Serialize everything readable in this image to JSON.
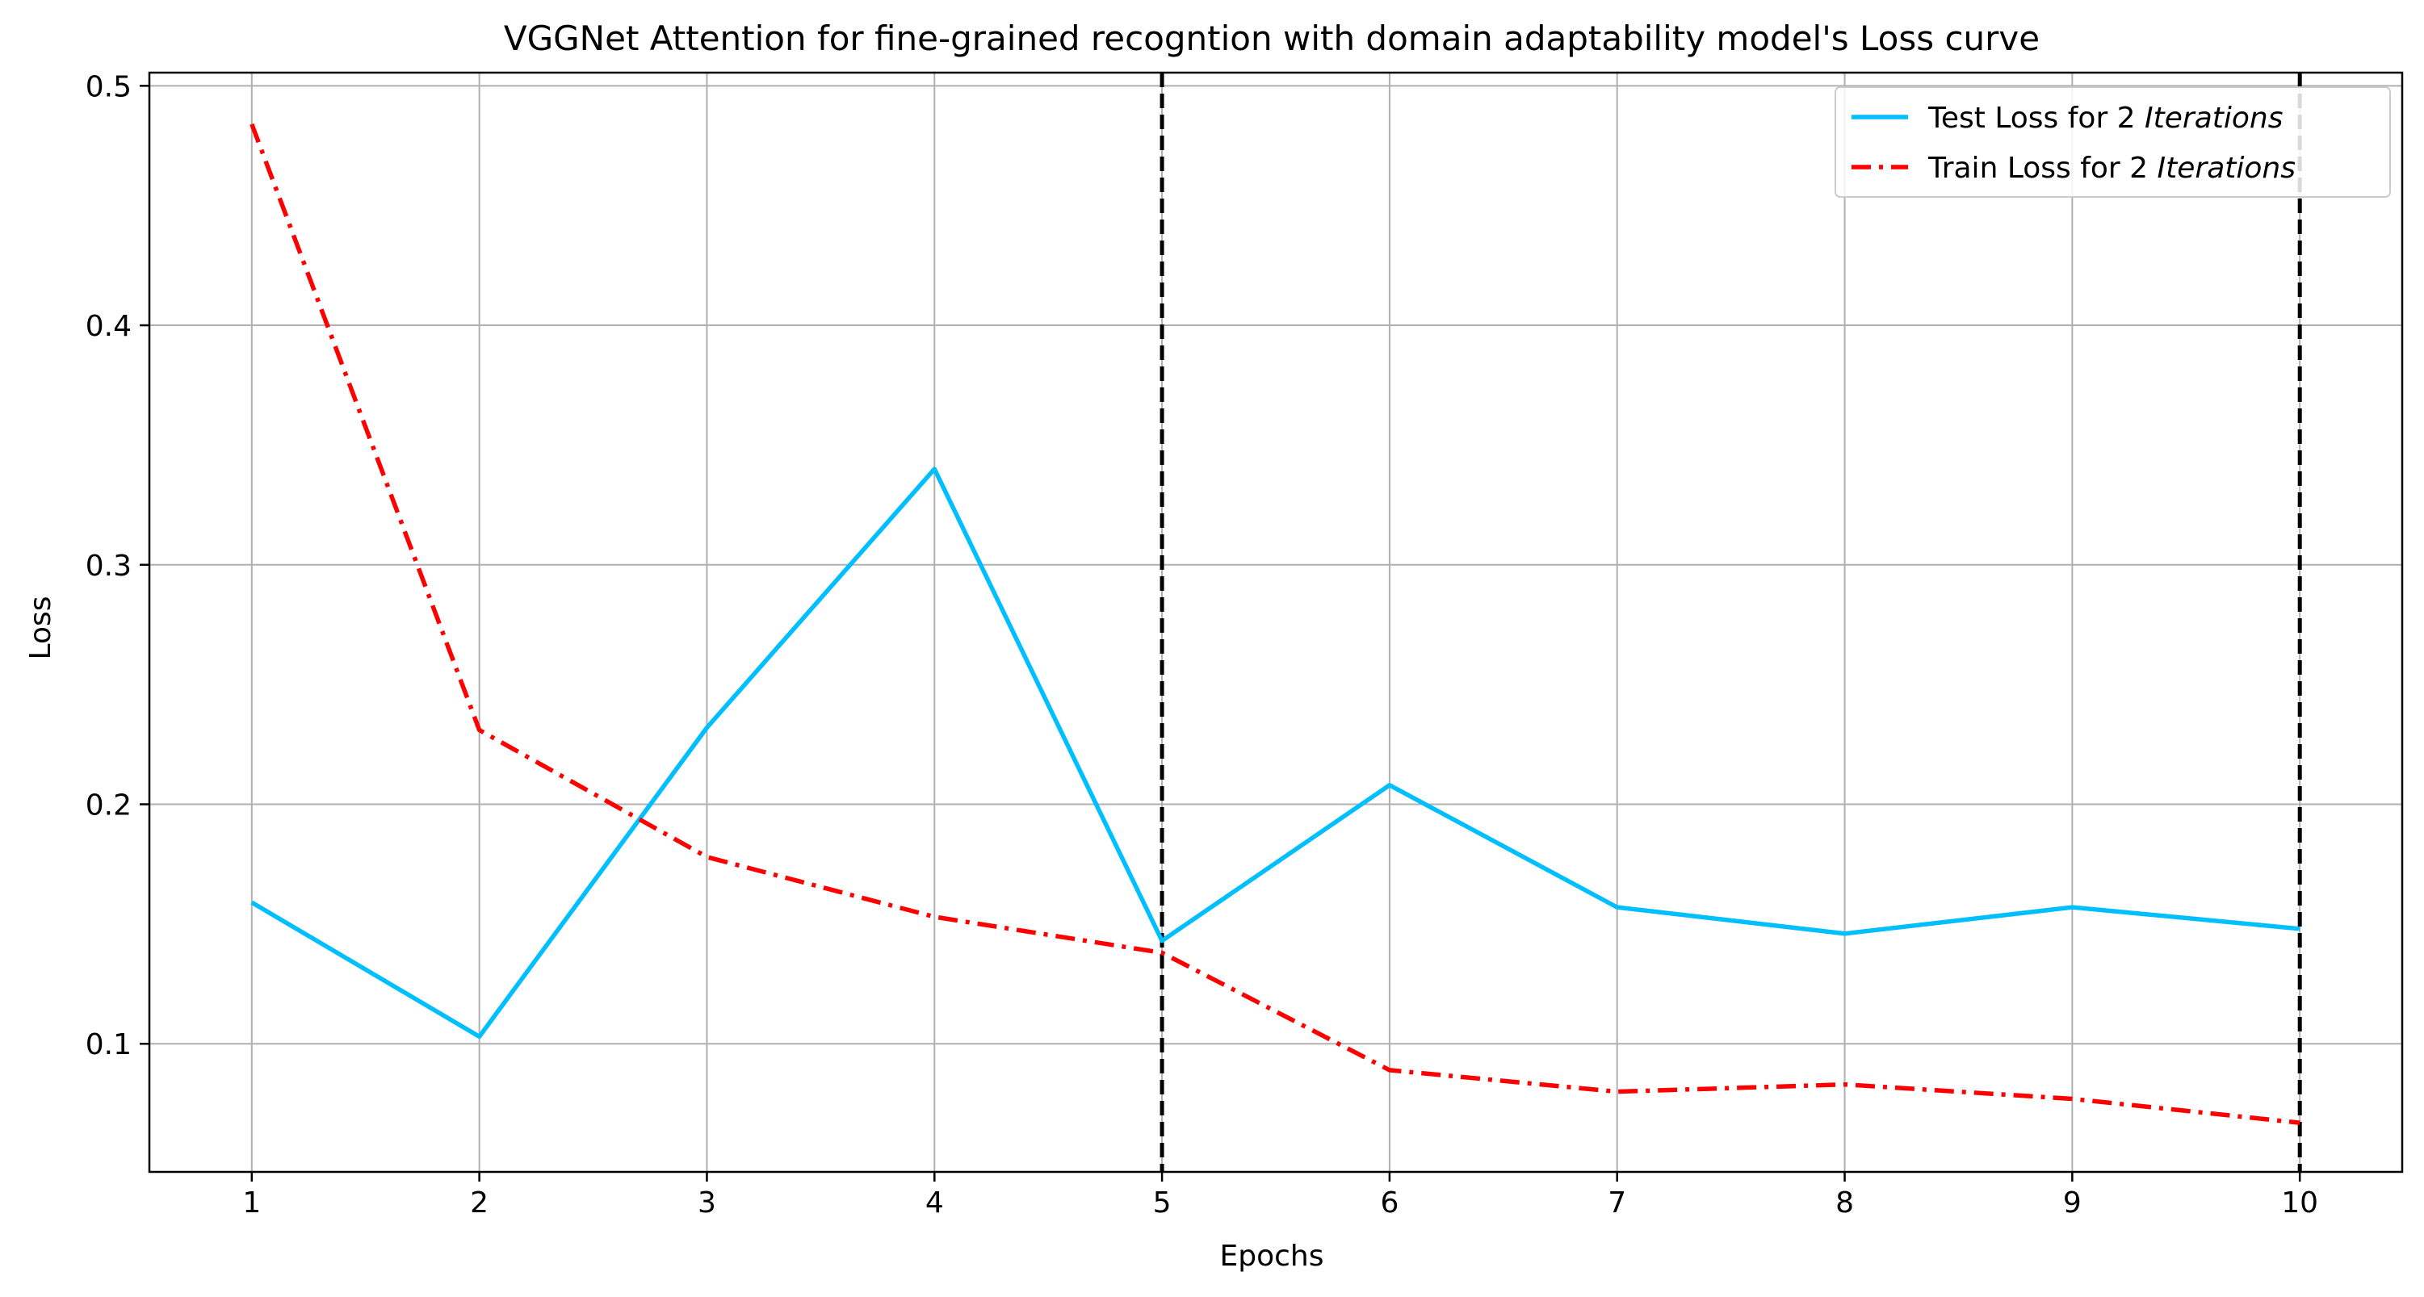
{
  "chart_data": {
    "type": "line",
    "title": "VGGNet Attention for fine-grained recogntion with domain adaptability model's Loss curve",
    "xlabel": "Epochs",
    "ylabel": "Loss",
    "x": [
      1,
      2,
      3,
      4,
      5,
      6,
      7,
      8,
      9,
      10
    ],
    "xlim": [
      0.55,
      10.45
    ],
    "ylim": [
      0.0465,
      0.5055
    ],
    "xticks": [
      1,
      2,
      3,
      4,
      5,
      6,
      7,
      8,
      9,
      10
    ],
    "xtick_labels": [
      "1",
      "2",
      "3",
      "4",
      "5",
      "6",
      "7",
      "8",
      "9",
      "10"
    ],
    "yticks": [
      0.1,
      0.2,
      0.3,
      0.4,
      0.5
    ],
    "ytick_labels": [
      "0.1",
      "0.2",
      "0.3",
      "0.4",
      "0.5"
    ],
    "grid": true,
    "legend_position": "top-right",
    "vertical_markers": [
      5,
      10
    ],
    "series": [
      {
        "name_prefix": "Test Loss for 2 ",
        "name_italic": "Iterations",
        "color": "#00bfff",
        "style": "solid",
        "values": [
          0.159,
          0.103,
          0.232,
          0.34,
          0.143,
          0.208,
          0.157,
          0.146,
          0.157,
          0.148
        ]
      },
      {
        "name_prefix": "Train Loss for 2 ",
        "name_italic": "Iterations",
        "color": "#ff0000",
        "style": "dashdot",
        "values": [
          0.484,
          0.231,
          0.178,
          0.153,
          0.138,
          0.089,
          0.08,
          0.083,
          0.077,
          0.067
        ]
      }
    ]
  }
}
